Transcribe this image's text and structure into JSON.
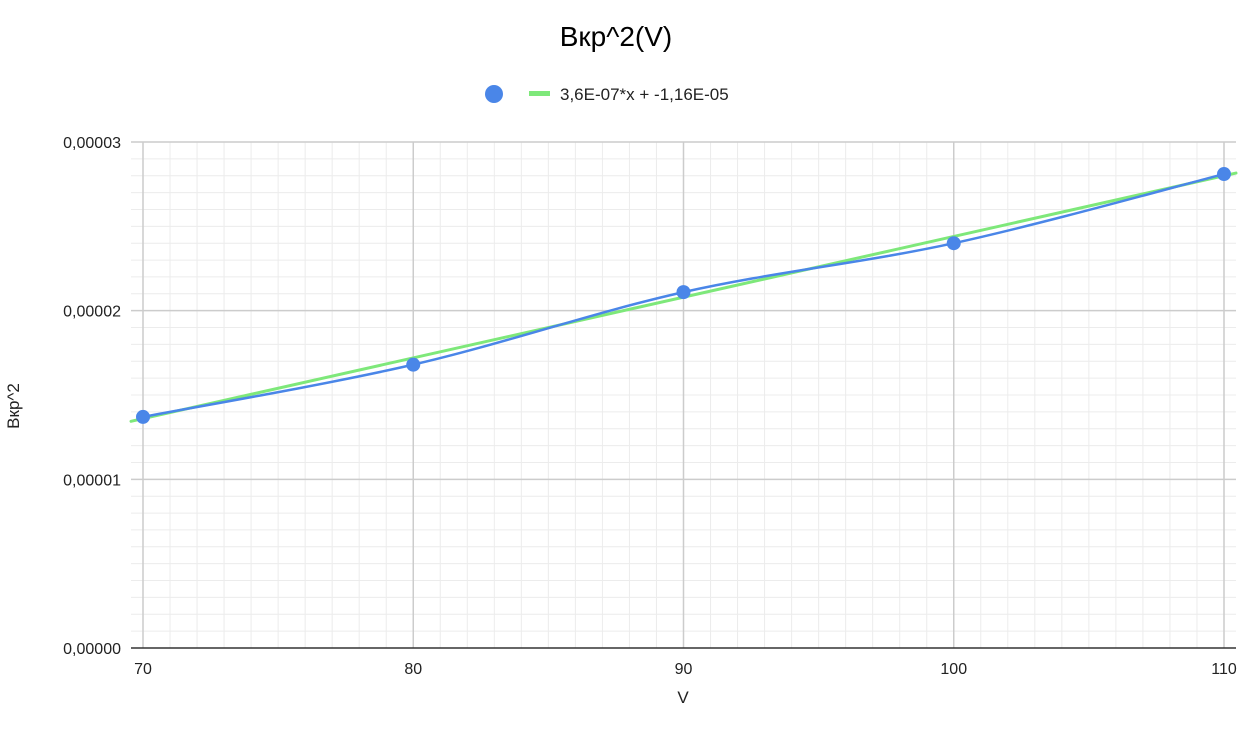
{
  "chart_data": {
    "type": "scatter",
    "title": "Вкр^2(V)",
    "xlabel": "V",
    "ylabel": "Вкр^2",
    "xlim": [
      70,
      110
    ],
    "ylim": [
      0,
      3e-05
    ],
    "x_ticks": [
      {
        "value": 70,
        "label": "70"
      },
      {
        "value": 80,
        "label": "80"
      },
      {
        "value": 90,
        "label": "90"
      },
      {
        "value": 100,
        "label": "100"
      },
      {
        "value": 110,
        "label": "110"
      }
    ],
    "y_ticks": [
      {
        "value": 0,
        "label": "0,00000"
      },
      {
        "value": 1e-05,
        "label": "0,00001"
      },
      {
        "value": 2e-05,
        "label": "0,00002"
      },
      {
        "value": 3e-05,
        "label": "0,00003"
      }
    ],
    "grid": true,
    "legend_position": "top",
    "series": [
      {
        "kind": "points-with-smooth-line",
        "color": "#4a86e8",
        "points": [
          {
            "x": 70,
            "y": 1.37e-05
          },
          {
            "x": 80,
            "y": 1.68e-05
          },
          {
            "x": 90,
            "y": 2.11e-05
          },
          {
            "x": 100,
            "y": 2.4e-05
          },
          {
            "x": 110,
            "y": 2.81e-05
          }
        ]
      },
      {
        "kind": "trendline",
        "name": "3,6E-07*x + -1,16E-05",
        "color": "#7ee87a",
        "slope": 3.6e-07,
        "intercept": -1.16e-05
      }
    ]
  }
}
